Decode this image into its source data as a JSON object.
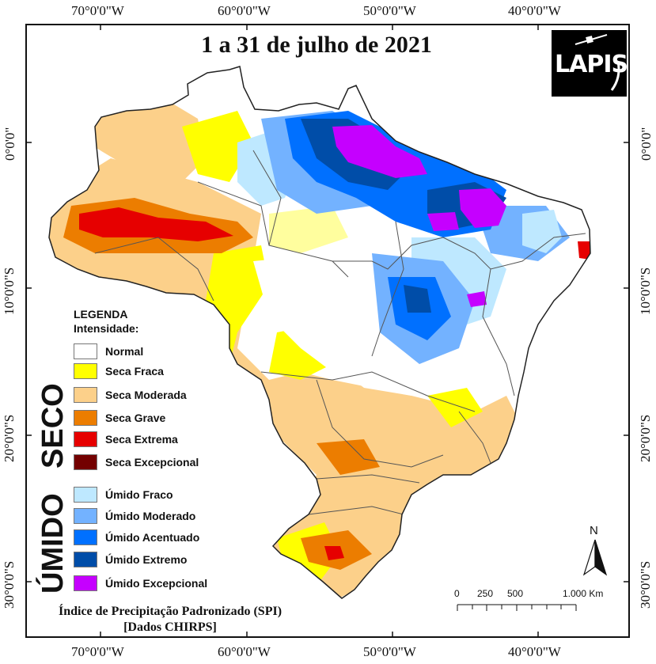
{
  "title": "1 a 31 de julho de 2021",
  "logo_text": "LAPIS",
  "coordinates": {
    "longitude_labels": [
      "70°0'0\"W",
      "60°0'0\"W",
      "50°0'0\"W",
      "40°0'0\"W"
    ],
    "latitude_labels": [
      "0°0'0\"",
      "10°0'0\"S",
      "20°0'0\"S",
      "30°0'0\"S"
    ]
  },
  "legend": {
    "title": "LEGENDA",
    "subtitle": "Intensidade:",
    "groups": [
      {
        "name": "SECO",
        "items": [
          {
            "label": "Normal",
            "color": "#ffffff"
          },
          {
            "label": "Seca Fraca",
            "color": "#ffff00"
          },
          {
            "label": "Seca Moderada",
            "color": "#fcd08a"
          },
          {
            "label": "Seca Grave",
            "color": "#ec7d00"
          },
          {
            "label": "Seca Extrema",
            "color": "#e60000"
          },
          {
            "label": "Seca Excepcional",
            "color": "#730000"
          }
        ]
      },
      {
        "name": "ÚMIDO",
        "items": [
          {
            "label": "Úmido Fraco",
            "color": "#bee8ff"
          },
          {
            "label": "Úmido Moderado",
            "color": "#73b2ff"
          },
          {
            "label": "Úmido Acentuado",
            "color": "#0070ff"
          },
          {
            "label": "Úmido Extremo",
            "color": "#004da8"
          },
          {
            "label": "Úmido Excepcional",
            "color": "#c500ff"
          }
        ]
      }
    ]
  },
  "north_arrow": "N",
  "scale_bar": {
    "labels": [
      "0",
      "250",
      "500",
      "1.000 Km"
    ]
  },
  "footer": {
    "line1": "Índice de Precipitação Padronizado (SPI)",
    "line2": "[Dados CHIRPS]"
  }
}
